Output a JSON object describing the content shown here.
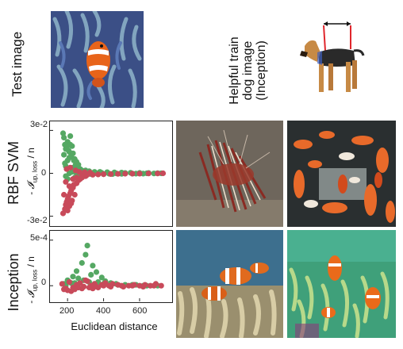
{
  "labels": {
    "test_image": "Test image",
    "helpful_train": "Helpful train\ndog image\n(Inception)",
    "rbf_svm": "RBF SVM",
    "inception": "Inception",
    "x_axis": "Euclidean distance",
    "y_axis_main": "- 𝓘",
    "y_axis_sub": "up, loss",
    "y_axis_suffix": " / n"
  },
  "colors": {
    "green": "#55a863",
    "red": "#c84a5a",
    "frame": "#222222"
  },
  "icons": [
    "clownfish-photo",
    "dog-photo",
    "lionfish-photo",
    "koi-fish-photo",
    "clownfish-anemone-photo",
    "clownfish-reef-photo"
  ],
  "chart_data": [
    {
      "type": "scatter",
      "title": "",
      "row_label": "RBF SVM",
      "ylabel": "- I up, loss / n",
      "xlabel": "",
      "xlim": [
        120,
        750
      ],
      "ylim": [
        -0.033,
        0.033
      ],
      "yticks": [
        0.03,
        0,
        -0.03
      ],
      "ytick_labels": [
        "3e-2",
        "0",
        "-3e-2"
      ],
      "grid": false,
      "series": [
        {
          "color": "green",
          "x": [
            175,
            180,
            185,
            190,
            200,
            210,
            215,
            220,
            225,
            230,
            240,
            250,
            260,
            200,
            190,
            230,
            210,
            180,
            185,
            195,
            205,
            215,
            235,
            245,
            255,
            270,
            280,
            300,
            320,
            350,
            380,
            420,
            460,
            500,
            550,
            600,
            650,
            700,
            190,
            200,
            240,
            260,
            300,
            340,
            400,
            450,
            500,
            560,
            620,
            680,
            720,
            210,
            225,
            250,
            270,
            290,
            310,
            330,
            360,
            390,
            430,
            470,
            520,
            580,
            640,
            700
          ],
          "y": [
            0.028,
            0.025,
            0.02,
            0.017,
            0.022,
            0.015,
            0.026,
            0.012,
            0.019,
            0.014,
            0.01,
            0.008,
            0.006,
            0.009,
            0.005,
            0.004,
            0.011,
            0.013,
            0.007,
            0.018,
            0.016,
            0.02,
            0.009,
            0.006,
            0.004,
            0.003,
            0.002,
            0.002,
            0.0015,
            0.001,
            0.001,
            0.0008,
            0.0006,
            0.0005,
            0.0004,
            0.0003,
            0.0002,
            0.0001,
            -0.002,
            -0.004,
            -0.003,
            -0.002,
            -0.001,
            -0.0008,
            -0.0006,
            -0.0005,
            -0.0004,
            -0.0003,
            -0.0002,
            -0.0001,
            0.0,
            0.0,
            0.001,
            0.0,
            -0.001,
            0.0,
            0.0005,
            -0.0005,
            0.0,
            0.0003,
            -0.0003,
            0.0,
            0.0002,
            -0.0002,
            0.0,
            0.0
          ]
        },
        {
          "color": "red",
          "x": [
            175,
            185,
            190,
            195,
            200,
            205,
            210,
            215,
            220,
            225,
            230,
            235,
            240,
            250,
            260,
            270,
            280,
            290,
            300,
            180,
            200,
            220,
            190,
            210,
            230,
            250,
            280,
            310,
            340,
            370,
            400,
            440,
            480,
            520,
            560,
            600,
            650,
            700,
            730,
            195,
            215,
            245,
            265,
            295,
            325
          ],
          "y": [
            -0.028,
            -0.025,
            -0.022,
            -0.02,
            -0.018,
            -0.016,
            -0.023,
            -0.014,
            -0.012,
            -0.019,
            -0.01,
            -0.008,
            -0.015,
            -0.007,
            -0.005,
            -0.004,
            -0.003,
            -0.002,
            -0.002,
            -0.015,
            -0.026,
            -0.021,
            -0.006,
            -0.009,
            -0.004,
            -0.003,
            -0.0015,
            -0.001,
            -0.001,
            -0.0008,
            -0.0006,
            -0.0005,
            -0.0004,
            -0.0003,
            -0.0002,
            -0.0002,
            -0.0001,
            -0.0001,
            0.0,
            0.003,
            0.004,
            0.002,
            0.001,
            0.0008,
            0.0005
          ]
        }
      ]
    },
    {
      "type": "scatter",
      "title": "",
      "row_label": "Inception",
      "ylabel": "- I up, loss / n",
      "xlabel": "Euclidean distance",
      "xlim": [
        120,
        750
      ],
      "ylim": [
        -0.00012,
        0.00055
      ],
      "yticks": [
        0.0005,
        0
      ],
      "ytick_labels": [
        "5e-4",
        "0"
      ],
      "xticks": [
        200,
        400,
        600
      ],
      "xtick_labels": [
        "200",
        "400",
        "600"
      ],
      "grid": false,
      "series": [
        {
          "color": "green",
          "x": [
            310,
            300,
            280,
            340,
            250,
            360,
            230,
            390,
            200,
            410,
            260,
            330,
            220,
            440,
            290,
            370,
            180,
            470,
            520,
            580,
            640,
            700,
            240,
            320,
            400,
            480,
            560,
            620,
            190,
            350
          ],
          "y": [
            0.00044,
            0.00034,
            0.00025,
            0.00022,
            0.00016,
            0.00015,
            0.0001,
            9e-05,
            6e-05,
            5e-05,
            8e-05,
            0.00012,
            3e-05,
            3e-05,
            6e-05,
            4e-05,
            2e-05,
            2e-05,
            1e-05,
            1e-05,
            0.0,
            0.0,
            3e-05,
            4e-05,
            2e-05,
            1e-05,
            1e-05,
            0.0,
            0.0,
            2e-05
          ]
        },
        {
          "color": "red",
          "x": [
            170,
            190,
            210,
            230,
            250,
            270,
            290,
            310,
            330,
            350,
            370,
            390,
            410,
            430,
            450,
            480,
            510,
            540,
            570,
            600,
            630,
            660,
            690,
            720,
            200,
            240,
            280,
            320,
            360,
            400,
            440,
            500,
            560,
            620,
            680,
            180,
            220,
            260,
            300,
            340
          ],
          "y": [
            2e-05,
            -3e-05,
            4e-05,
            -2e-05,
            1e-05,
            3e-05,
            -1e-05,
            5e-05,
            0.0,
            2e-05,
            -2e-05,
            1e-05,
            3e-05,
            0.0,
            2e-05,
            1e-05,
            -1e-05,
            0.0,
            1e-05,
            0.0,
            1e-05,
            0.0,
            2e-05,
            0.0,
            -5e-05,
            -4e-05,
            -3e-05,
            -2e-05,
            -1e-05,
            0.0,
            -1e-05,
            0.0,
            0.0,
            -1e-05,
            0.0,
            -4e-05,
            -6e-05,
            -2e-05,
            6e-05,
            -3e-05
          ]
        }
      ]
    }
  ]
}
